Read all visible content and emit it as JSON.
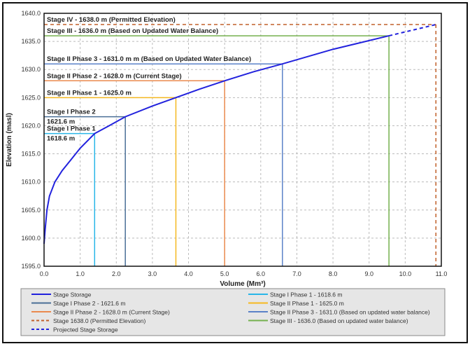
{
  "chart_data": {
    "type": "line",
    "xlabel": "Volume (Mm³)",
    "ylabel": "Elevation (masl)",
    "xlim": [
      0,
      11
    ],
    "ylim": [
      1595,
      1640
    ],
    "xticks": [
      "0.0",
      "1.0",
      "2.0",
      "3.0",
      "4.0",
      "5.0",
      "6.0",
      "7.0",
      "8.0",
      "9.0",
      "10.0",
      "11.0"
    ],
    "yticks": [
      "1595.0",
      "1600.0",
      "1605.0",
      "1610.0",
      "1615.0",
      "1620.0",
      "1625.0",
      "1630.0",
      "1635.0",
      "1640.0"
    ],
    "grid": true,
    "legend_position": "bottom",
    "series": [
      {
        "name": "Stage Storage",
        "color": "#2222dd",
        "style": "solid",
        "x": [
          0,
          0.03,
          0.08,
          0.15,
          0.3,
          0.5,
          0.75,
          1.0,
          1.4,
          1.8,
          2.25,
          3.0,
          3.65,
          4.3,
          5.0,
          5.8,
          6.6,
          8.0,
          9.55
        ],
        "y": [
          1599,
          1601.5,
          1605,
          1607.5,
          1610,
          1612,
          1614,
          1616,
          1618.6,
          1620,
          1621.6,
          1623.5,
          1625,
          1626.5,
          1628,
          1629.6,
          1631,
          1633.6,
          1636
        ]
      },
      {
        "name": "Projected Stage Storage",
        "color": "#2222dd",
        "style": "dashed",
        "x": [
          9.55,
          10.85
        ],
        "y": [
          1636,
          1638
        ]
      }
    ],
    "stages": [
      {
        "legend": "Stage I Phase 1 - 1618.6 m",
        "label": [
          "Stage I Phase 1",
          "1618.6 m"
        ],
        "elevation": 1618.6,
        "volume": 1.4,
        "color": "#29b6e8",
        "style": "solid"
      },
      {
        "legend": "Stage I Phase 2 - 1621.6 m",
        "label": [
          "Stage I Phase 2",
          "1621.6 m"
        ],
        "elevation": 1621.6,
        "volume": 2.25,
        "color": "#4a6f96",
        "style": "solid"
      },
      {
        "legend": "Stage II Phase 1 - 1625.0 m",
        "label": [
          "Stage II Phase 1 - 1625.0 m"
        ],
        "elevation": 1625.0,
        "volume": 3.65,
        "color": "#f5b820",
        "style": "solid"
      },
      {
        "legend": "Stage II Phase 2 - 1628.0 m (Current Stage)",
        "label": [
          "Stage II Phase 2 - 1628.0 m (Current Stage)"
        ],
        "elevation": 1628.0,
        "volume": 5.0,
        "color": "#ea8a4e",
        "style": "solid"
      },
      {
        "legend": "Stage II Phase 3 - 1631.0 (Based on updated water balance)",
        "label": [
          "Stage II Phase 3 - 1631.0 m m (Based on Updated Water Balance)"
        ],
        "elevation": 1631.0,
        "volume": 6.6,
        "color": "#5b82c8",
        "style": "solid"
      },
      {
        "legend": "Stage III - 1636.0 (Based on updated water balance)",
        "label": [
          "Stage III - 1636.0 m (Based on Updated Water Balance)"
        ],
        "elevation": 1636.0,
        "volume": 9.55,
        "color": "#74b04e",
        "style": "solid"
      },
      {
        "legend": "Stage 1638.0 (Permitted Elevation)",
        "label": [
          "Stage IV - 1638.0  m (Permitted Elevation)"
        ],
        "elevation": 1638.0,
        "volume": 10.85,
        "color": "#c0602a",
        "style": "dashed"
      }
    ],
    "legend_order": [
      "Stage Storage",
      "Stage I Phase 1 - 1618.6 m",
      "Stage I Phase 2 - 1621.6 m",
      "Stage II Phase 1 - 1625.0 m",
      "Stage II Phase 2 - 1628.0 m (Current Stage)",
      "Stage II Phase 3 - 1631.0 (Based on updated water balance)",
      "Stage 1638.0 (Permitted Elevation)",
      "Stage III - 1636.0 (Based on updated water balance)",
      "Projected Stage Storage"
    ]
  }
}
